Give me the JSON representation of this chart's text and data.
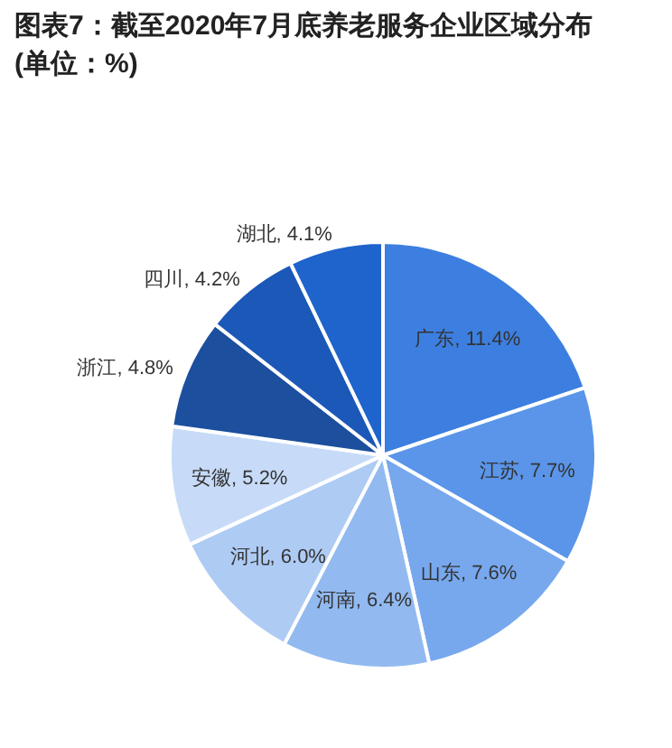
{
  "chart_data": {
    "type": "pie",
    "title": "图表7：截至2020年7月底养老服务企业区域分布(单位：%)",
    "categories": [
      "广东",
      "江苏",
      "山东",
      "河南",
      "河北",
      "安徽",
      "浙江",
      "四川",
      "湖北"
    ],
    "values": [
      11.4,
      7.7,
      7.6,
      6.4,
      6.0,
      5.2,
      4.8,
      4.2,
      4.1
    ],
    "value_labels": [
      "11.4%",
      "7.7%",
      "7.6%",
      "6.4%",
      "6.0%",
      "5.2%",
      "4.8%",
      "4.2%",
      "4.1%"
    ],
    "colors": [
      "#3d7fe0",
      "#5a95e9",
      "#77a8ee",
      "#92baf1",
      "#aecbf4",
      "#c7dbf8",
      "#1c4f9e",
      "#1b58b8",
      "#1f63cc"
    ]
  }
}
